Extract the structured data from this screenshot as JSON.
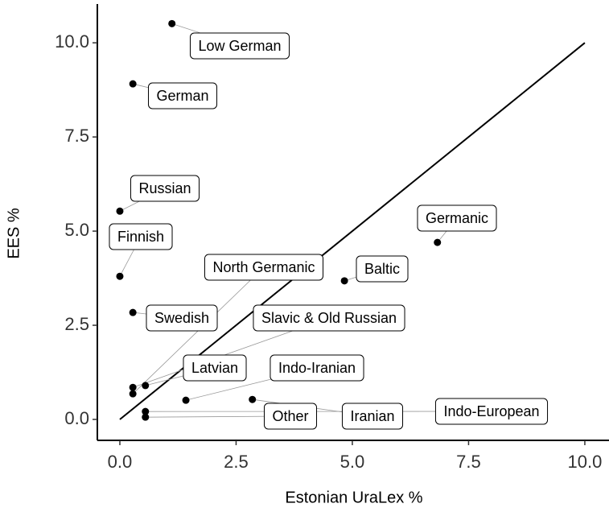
{
  "chart_data": {
    "type": "scatter",
    "x_label": "Estonian UraLex %",
    "y_label": "EES %",
    "color": "#000000",
    "labels": [
      "Low German",
      "German",
      "Russian",
      "Finnish",
      "Swedish",
      "Germanic",
      "Baltic",
      "North Germanic",
      "Slavic & Old Russian",
      "Latvian",
      "Indo-Iranian",
      "Iranian",
      "Other",
      "Indo-European"
    ],
    "x": [
      1.12,
      0.28,
      0,
      0,
      0.28,
      6.83,
      4.83,
      0.28,
      0.28,
      0.55,
      1.42,
      2.85,
      0.55,
      0.55
    ],
    "values": [
      10.51,
      8.91,
      5.53,
      3.8,
      2.84,
      4.7,
      3.68,
      0.68,
      0.85,
      0.9,
      0.51,
      0.53,
      0.06,
      0.21
    ],
    "reference_line": {
      "x": [
        0,
        10
      ],
      "y": [
        0,
        10
      ]
    },
    "xlim": [
      -0.484,
      10.52
    ],
    "ylim": [
      -0.556,
      11.03
    ],
    "xticks": [
      {
        "value": 0,
        "label": "0.0"
      },
      {
        "value": 2.5,
        "label": "2.5"
      },
      {
        "value": 5,
        "label": "5.0"
      },
      {
        "value": 7.5,
        "label": "7.5"
      },
      {
        "value": 10,
        "label": "10.0"
      }
    ],
    "yticks": [
      {
        "value": 0,
        "label": "0.0"
      },
      {
        "value": 2.5,
        "label": "2.5"
      },
      {
        "value": 5,
        "label": "5.0"
      },
      {
        "value": 7.5,
        "label": "7.5"
      },
      {
        "value": 10,
        "label": "10.0"
      }
    ]
  }
}
